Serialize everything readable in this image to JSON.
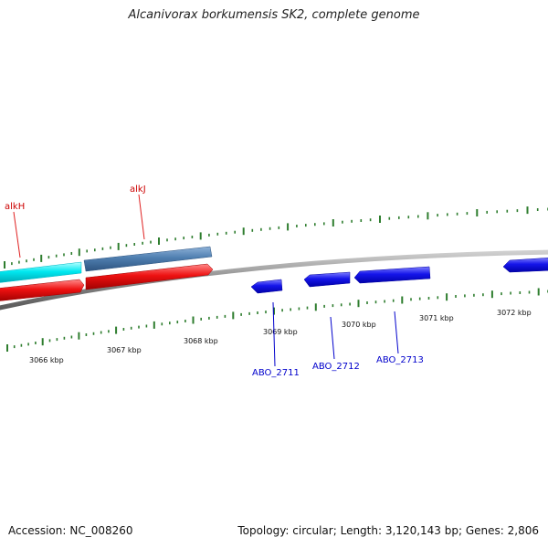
{
  "title": "Alcanivorax borkumensis SK2, complete genome",
  "footer": {
    "accession_label": "Accession:",
    "accession_value": "NC_008260",
    "topology_label": "Topology:",
    "topology_value": "circular",
    "length_label": "Length:",
    "length_value": "3,120,143 bp",
    "genes_label": "Genes:",
    "genes_value": "2,806"
  },
  "colors": {
    "backbone": "#8a8a8a",
    "tick": "#2e7d2e",
    "forward_top": "#00e5ee",
    "forward_top_alt": "#4f7fb0",
    "forward_red": "#ee1111",
    "reverse_blue": "#1010e0",
    "label_red": "#cc0000",
    "label_blue": "#0000cc"
  },
  "scale_labels": [
    "3066 kbp",
    "3067 kbp",
    "3068 kbp",
    "3069 kbp",
    "3070 kbp",
    "3071 kbp",
    "3072 kbp"
  ],
  "gene_labels": {
    "alkH": "alkH",
    "alkJ": "alkJ",
    "abo2711": "ABO_2711",
    "abo2712": "ABO_2712",
    "abo2713": "ABO_2713"
  }
}
